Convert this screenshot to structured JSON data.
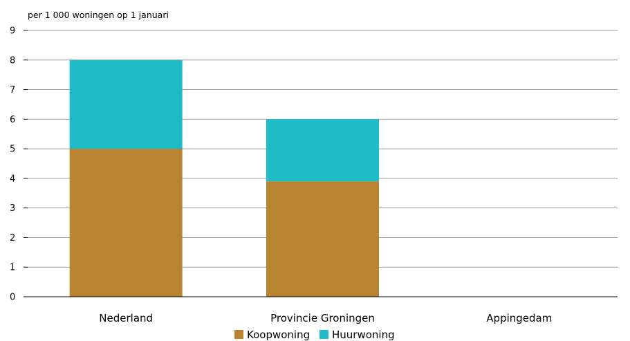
{
  "chart_data": {
    "type": "bar",
    "stacked": true,
    "subtitle": "per 1 000 woningen op 1 januari",
    "categories": [
      "Nederland",
      "Provincie Groningen",
      "Appingedam"
    ],
    "series": [
      {
        "name": "Koopwoning",
        "values": [
          5.0,
          3.9,
          0
        ],
        "color": "#b88431"
      },
      {
        "name": "Huurwoning",
        "values": [
          3.0,
          2.1,
          0
        ],
        "color": "#1fbcc8"
      }
    ],
    "ylim": [
      0,
      9
    ],
    "yticks": [
      0,
      1,
      2,
      3,
      4,
      5,
      6,
      7,
      8,
      9
    ],
    "grid": true,
    "legend_position": "bottom"
  }
}
